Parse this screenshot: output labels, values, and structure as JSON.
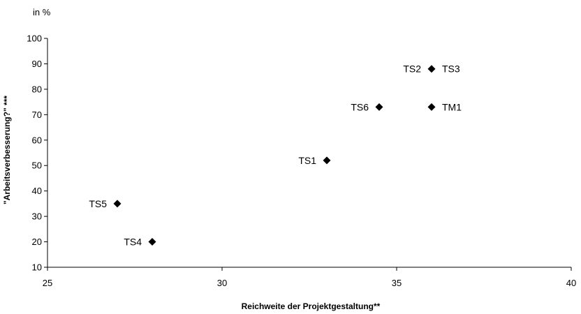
{
  "chart_data": {
    "type": "scatter",
    "unit_label": "in %",
    "xlabel": "Reichweite der Projektgestaltung**",
    "ylabel": "\"Arbeitsverbesserung?\" ***",
    "xlim": [
      25,
      40
    ],
    "ylim": [
      10,
      100
    ],
    "xticks": [
      25,
      30,
      35,
      40
    ],
    "yticks": [
      10,
      20,
      30,
      40,
      50,
      60,
      70,
      80,
      90,
      100
    ],
    "grid": false,
    "marker": "diamond",
    "points": [
      {
        "label": "TS5",
        "x": 27,
        "y": 35,
        "label_side": "left"
      },
      {
        "label": "TS4",
        "x": 28,
        "y": 20,
        "label_side": "left"
      },
      {
        "label": "TS1",
        "x": 33,
        "y": 52,
        "label_side": "left"
      },
      {
        "label": "TS6",
        "x": 34.5,
        "y": 73,
        "label_side": "left"
      },
      {
        "label": "TS2",
        "x": 36,
        "y": 88,
        "label_side": "left"
      },
      {
        "label": "TS3",
        "x": 36,
        "y": 88,
        "label_side": "right"
      },
      {
        "label": "TM1",
        "x": 36,
        "y": 73,
        "label_side": "right"
      }
    ]
  }
}
